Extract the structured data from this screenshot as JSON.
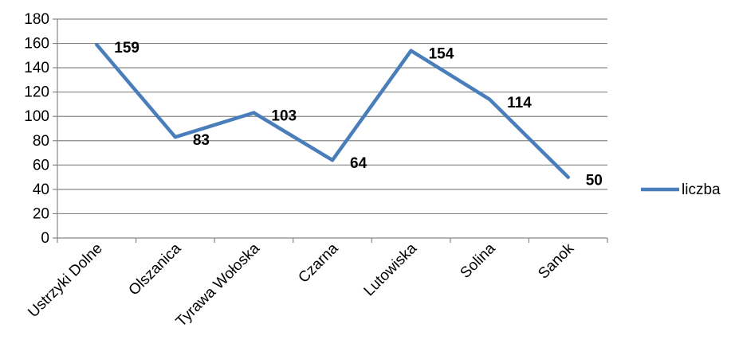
{
  "chart_data": {
    "type": "line",
    "categories": [
      "Ustrzyki Dolne",
      "Olszanica",
      "Tyrawa Wołoska",
      "Czarna",
      "Lutowiska",
      "Solina",
      "Sanok"
    ],
    "series": [
      {
        "name": "liczba",
        "values": [
          159,
          83,
          103,
          64,
          154,
          114,
          50
        ],
        "color": "#4a7ebb"
      }
    ],
    "title": "",
    "xlabel": "",
    "ylabel": "",
    "ylim": [
      0,
      180
    ],
    "yticks": [
      0,
      20,
      40,
      60,
      80,
      100,
      120,
      140,
      160,
      180
    ],
    "grid": true,
    "legend": "right",
    "data_labels": true
  }
}
